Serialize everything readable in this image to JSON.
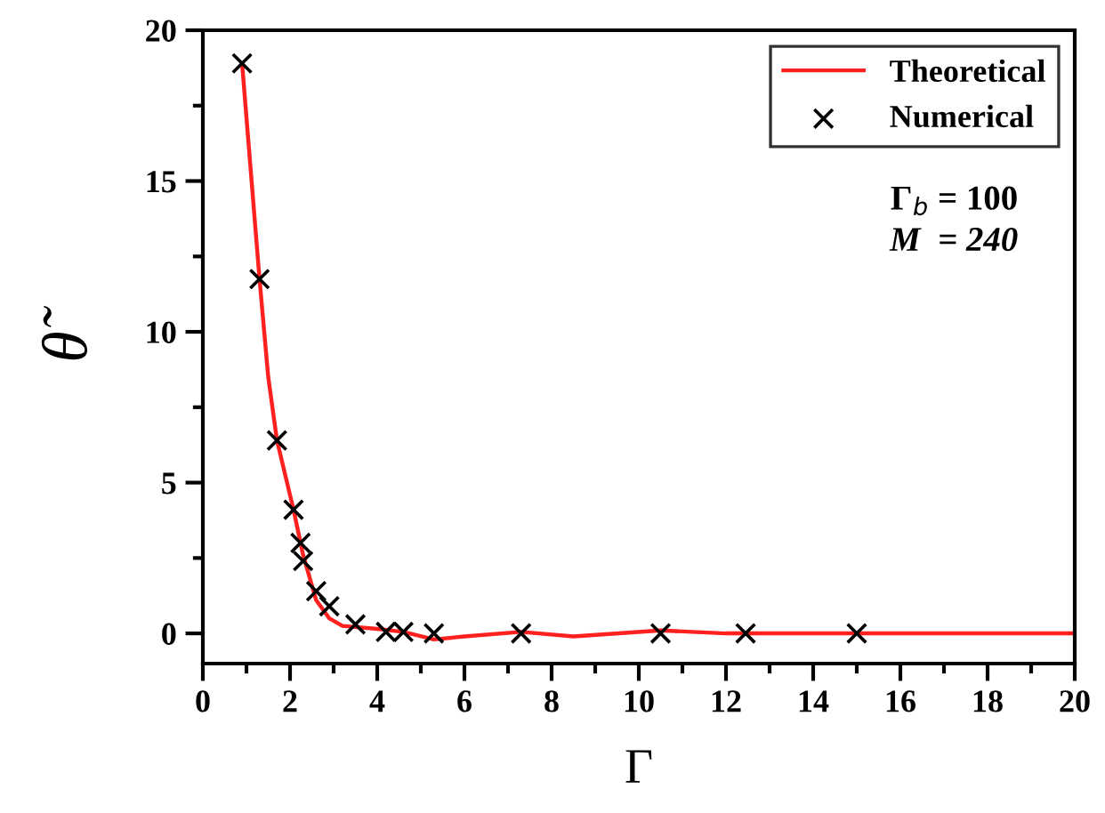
{
  "chart_data": {
    "type": "line",
    "xlabel": "Γ",
    "ylabel": "θ̃",
    "xlim": [
      0,
      20
    ],
    "xticks": [
      0,
      2,
      4,
      6,
      8,
      10,
      12,
      14,
      16,
      18,
      20
    ],
    "ylim": [
      -1,
      20
    ],
    "yticks": [
      0,
      5,
      10,
      15,
      20
    ],
    "series": [
      {
        "name": "Theoretical",
        "type": "line",
        "color": "#ff2020",
        "marker": "none",
        "line_style": "solid",
        "x": [
          0.9,
          1.3,
          1.5,
          1.7,
          2.08,
          2.3,
          2.6,
          2.9,
          3.2,
          4.0,
          4.6,
          5.3,
          6.0,
          7.3,
          8.5,
          10.5,
          12.0,
          14.0,
          16.0,
          20.0
        ],
        "values": [
          18.9,
          11.75,
          8.5,
          6.4,
          4.1,
          2.6,
          1.1,
          0.5,
          0.25,
          0.15,
          0.05,
          -0.2,
          -0.1,
          0.05,
          -0.1,
          0.1,
          0.0,
          0.0,
          0.0,
          0.0
        ]
      },
      {
        "name": "Numerical",
        "type": "scatter",
        "color": "#000000",
        "marker": "cross",
        "x": [
          0.9,
          1.3,
          1.7,
          2.08,
          2.24,
          2.3,
          2.6,
          2.9,
          3.5,
          4.2,
          4.6,
          5.3,
          7.3,
          10.5,
          12.45,
          15.0
        ],
        "values": [
          18.9,
          11.75,
          6.4,
          4.1,
          3.0,
          2.4,
          1.4,
          0.9,
          0.3,
          0.05,
          0.05,
          0.0,
          0.0,
          0.0,
          0.0,
          0.0
        ]
      }
    ],
    "annotations": [
      "Γ$_{b}$ = 100",
      "M  = 240"
    ],
    "legend": "top right",
    "grid": false
  }
}
